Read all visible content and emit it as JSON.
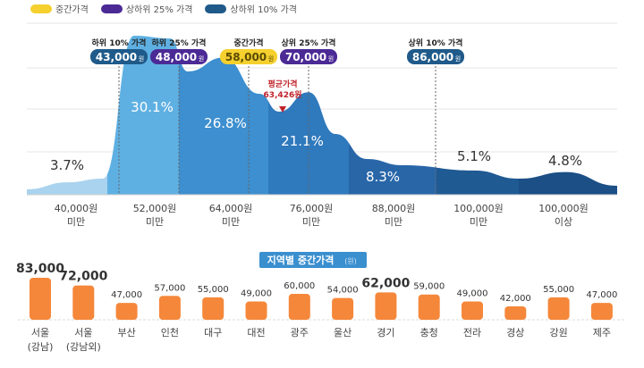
{
  "legend": [
    {
      "label": "중간가격",
      "color": "#f5d02e"
    },
    {
      "label": "상하위 25% 가격",
      "color": "#4b2a96"
    },
    {
      "label": "상하위 10% 가격",
      "color": "#1f5a8a"
    }
  ],
  "chart_data": [
    {
      "type": "area",
      "categories": [
        {
          "line1": "40,000원",
          "line2": "미만"
        },
        {
          "line1": "52,000원",
          "line2": "미만"
        },
        {
          "line1": "64,000원",
          "line2": "미만"
        },
        {
          "line1": "76,000원",
          "line2": "미만"
        },
        {
          "line1": "88,000원",
          "line2": "미만"
        },
        {
          "line1": "100,000원",
          "line2": "미만"
        },
        {
          "line1": "100,000원",
          "line2": "이상"
        }
      ],
      "values": [
        3.7,
        30.1,
        26.8,
        21.1,
        8.3,
        5.1,
        4.8
      ],
      "value_labels": [
        "3.7%",
        "30.1%",
        "26.8%",
        "21.1%",
        "8.3%",
        "5.1%",
        "4.8%"
      ],
      "grid": true,
      "markers": [
        {
          "title": "하위 10% 가격",
          "value": "43,000",
          "unit": "원",
          "color": "#1f5a8a"
        },
        {
          "title": "하위 25% 가격",
          "value": "48,000",
          "unit": "원",
          "color": "#4b2a96"
        },
        {
          "title": "중간가격",
          "value": "58,000",
          "unit": "원",
          "color": "#f5d02e"
        },
        {
          "title": "상위 25% 가격",
          "value": "70,000",
          "unit": "원",
          "color": "#4b2a96"
        },
        {
          "title": "상위 10% 가격",
          "value": "86,000",
          "unit": "원",
          "color": "#1f5a8a"
        }
      ],
      "average": {
        "title": "평균가격",
        "value": "63,426원",
        "color": "#c0222a"
      }
    },
    {
      "type": "bar",
      "title": "지역별 중간가격",
      "unit": "(원)",
      "categories": [
        [
          "서울",
          "(강남)"
        ],
        [
          "서울",
          "(강남외)"
        ],
        [
          "부산"
        ],
        [
          "인천"
        ],
        [
          "대구"
        ],
        [
          "대전"
        ],
        [
          "광주"
        ],
        [
          "울산"
        ],
        [
          "경기"
        ],
        [
          "충청"
        ],
        [
          "전라"
        ],
        [
          "경상"
        ],
        [
          "강원"
        ],
        [
          "제주"
        ]
      ],
      "values": [
        83000,
        72000,
        47000,
        57000,
        55000,
        49000,
        60000,
        54000,
        62000,
        59000,
        49000,
        42000,
        55000,
        47000
      ],
      "value_labels": [
        "83,000",
        "72,000",
        "47,000",
        "57,000",
        "55,000",
        "49,000",
        "60,000",
        "54,000",
        "62,000",
        "59,000",
        "49,000",
        "42,000",
        "55,000",
        "47,000"
      ],
      "color": "#f5873a"
    }
  ]
}
